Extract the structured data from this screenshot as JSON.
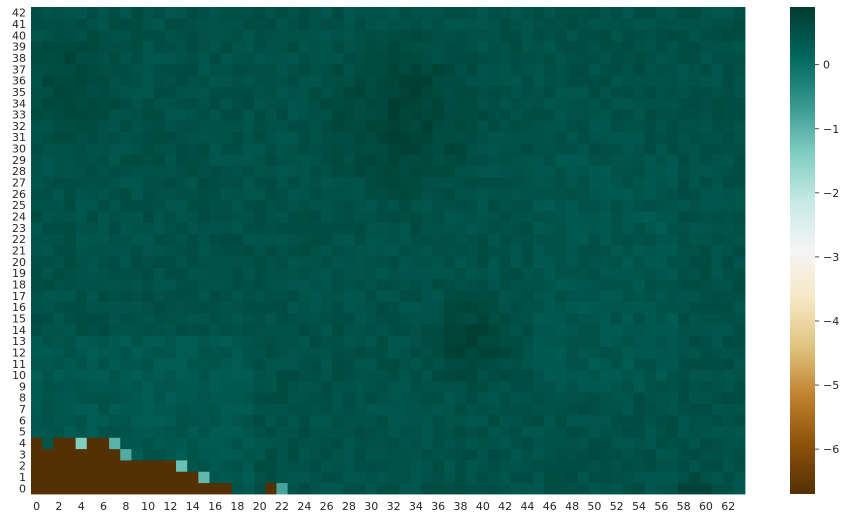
{
  "chart_data": {
    "type": "heatmap",
    "title": "",
    "xlabel": "",
    "ylabel": "",
    "n_cols": 64,
    "n_rows": 43,
    "x_tick_labels": [
      "0",
      "2",
      "4",
      "6",
      "8",
      "10",
      "12",
      "14",
      "16",
      "18",
      "20",
      "22",
      "24",
      "26",
      "28",
      "30",
      "32",
      "34",
      "36",
      "38",
      "40",
      "42",
      "44",
      "46",
      "48",
      "50",
      "52",
      "54",
      "56",
      "58",
      "60",
      "62"
    ],
    "y_tick_labels": [
      "0",
      "1",
      "2",
      "3",
      "4",
      "5",
      "6",
      "7",
      "8",
      "9",
      "10",
      "11",
      "12",
      "13",
      "14",
      "15",
      "16",
      "17",
      "18",
      "19",
      "20",
      "21",
      "22",
      "23",
      "24",
      "25",
      "26",
      "27",
      "28",
      "29",
      "30",
      "31",
      "32",
      "33",
      "34",
      "35",
      "36",
      "37",
      "38",
      "39",
      "40",
      "41",
      "42"
    ],
    "colorbar": {
      "colormap": "BrBG",
      "vmin": -6.7,
      "vmax": 0.9,
      "tick_labels": [
        "0",
        "−1",
        "−2",
        "−3",
        "−4",
        "−5",
        "−6"
      ],
      "tick_values": [
        0,
        -1,
        -2,
        -3,
        -4,
        -5,
        -6
      ]
    },
    "typical_value_range": [
      0.2,
      0.9
    ],
    "low_value_cells": [
      {
        "row": 4,
        "cols": [
          0,
          2,
          3,
          5,
          6
        ],
        "value": -6.7
      },
      {
        "row": 4,
        "cols": [
          4
        ],
        "value": -1.4
      },
      {
        "row": 4,
        "cols": [
          7
        ],
        "value": -1.0
      },
      {
        "row": 3,
        "cols": [
          0,
          1,
          2,
          3,
          4,
          5,
          6,
          7
        ],
        "value": -6.7
      },
      {
        "row": 3,
        "cols": [
          8
        ],
        "value": -0.9
      },
      {
        "row": 2,
        "cols": [
          0,
          1,
          2,
          3,
          4,
          5,
          6,
          7,
          8,
          9,
          10,
          11,
          12
        ],
        "value": -6.7
      },
      {
        "row": 2,
        "cols": [
          13
        ],
        "value": -1.2
      },
      {
        "row": 1,
        "cols": [
          0,
          1,
          2,
          3,
          4,
          5,
          6,
          7,
          8,
          9,
          10,
          11,
          12,
          13,
          14
        ],
        "value": -6.7
      },
      {
        "row": 1,
        "cols": [
          15
        ],
        "value": -1.1
      },
      {
        "row": 0,
        "cols": [
          0,
          1,
          2,
          3,
          4,
          5,
          6,
          7,
          8,
          9,
          10,
          11,
          12,
          13,
          14,
          15,
          16,
          17
        ],
        "value": -6.7
      },
      {
        "row": 0,
        "cols": [
          21
        ],
        "value": -6.7
      },
      {
        "row": 0,
        "cols": [
          22
        ],
        "value": -0.8
      }
    ],
    "dark_regions": [
      {
        "center_col": 33,
        "center_row": 33,
        "radius": 9,
        "value": 0.9
      },
      {
        "center_col": 39,
        "center_row": 13,
        "radius": 5,
        "value": 0.9
      },
      {
        "center_col": 3,
        "center_row": 36,
        "radius": 6,
        "value": 0.8
      },
      {
        "center_col": 59,
        "center_row": 0,
        "radius": 2,
        "value": 0.9
      }
    ]
  }
}
